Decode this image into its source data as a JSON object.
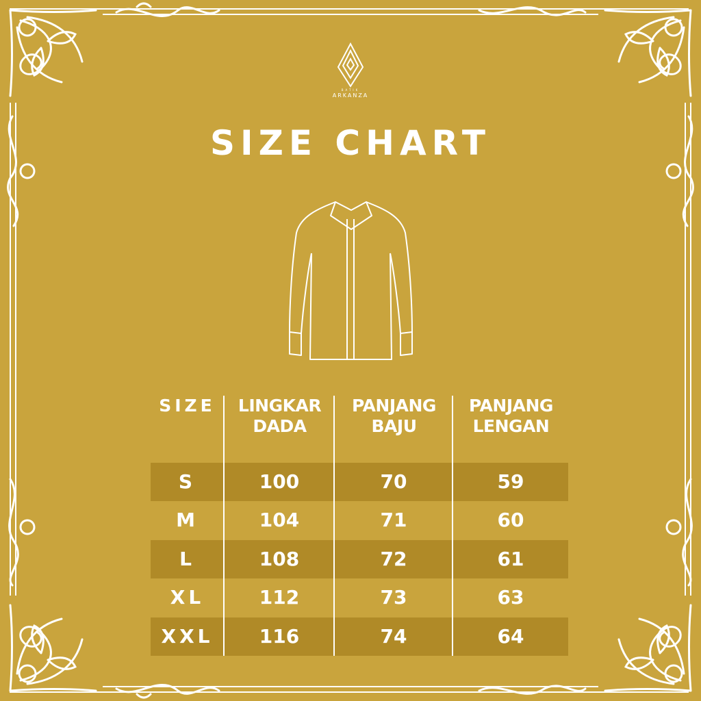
{
  "brand": {
    "small": "BATIK",
    "name": "ARKANZA"
  },
  "title": "SIZE CHART",
  "colors": {
    "background": "#C9A43D",
    "stripe": "#B08A27",
    "text": "#FFFFFF"
  },
  "illustration": "shirt-icon",
  "table": {
    "headers": [
      [
        "SIZE",
        ""
      ],
      [
        "LINGKAR",
        "DADA"
      ],
      [
        "PANJANG",
        "BAJU"
      ],
      [
        "PANJANG",
        "LENGAN"
      ]
    ],
    "rows": [
      [
        "S",
        "100",
        "70",
        "59"
      ],
      [
        "M",
        "104",
        "71",
        "60"
      ],
      [
        "L",
        "108",
        "72",
        "61"
      ],
      [
        "XL",
        "112",
        "73",
        "63"
      ],
      [
        "XXL",
        "116",
        "74",
        "64"
      ]
    ]
  }
}
